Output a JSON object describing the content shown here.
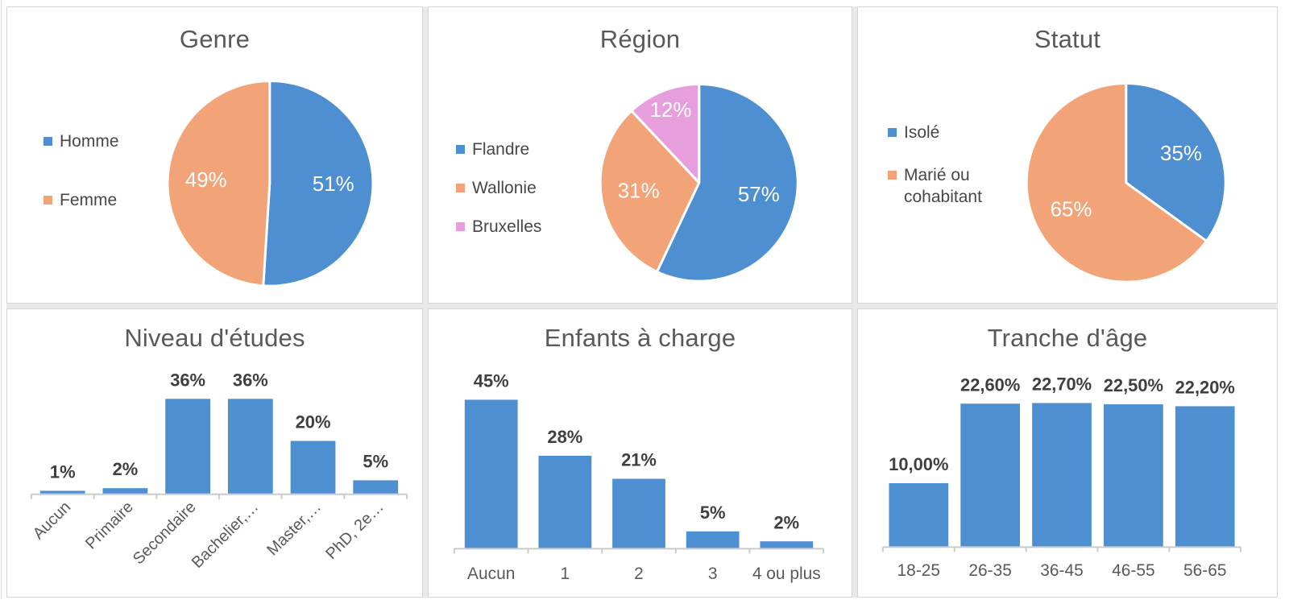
{
  "colors": {
    "series_blue": "#4e8fd2",
    "series_orange": "#f2a478",
    "series_pink": "#e79edc",
    "title_text": "#595959",
    "legend_text": "#474747",
    "value_label_text": "#3f3f3f",
    "category_label_text": "#595959",
    "axis_line": "#cbcbcb",
    "panel_border": "#d4d4d4",
    "grid_gap": "#e9e9e9"
  },
  "chart_data": [
    {
      "type": "pie",
      "title": "Genre",
      "legend_position": "left",
      "slices": [
        {
          "label": "Homme",
          "value": 51,
          "display": "51%",
          "color": "#4e8fd2"
        },
        {
          "label": "Femme",
          "value": 49,
          "display": "49%",
          "color": "#f2a478"
        }
      ]
    },
    {
      "type": "pie",
      "title": "Région",
      "legend_position": "left",
      "slices": [
        {
          "label": "Flandre",
          "value": 57,
          "display": "57%",
          "color": "#4e8fd2"
        },
        {
          "label": "Wallonie",
          "value": 31,
          "display": "31%",
          "color": "#f2a478"
        },
        {
          "label": "Bruxelles",
          "value": 12,
          "display": "12%",
          "color": "#e79edc"
        }
      ]
    },
    {
      "type": "pie",
      "title": "Statut",
      "legend_position": "left",
      "slices": [
        {
          "label": "Isolé",
          "value": 35,
          "display": "35%",
          "color": "#4e8fd2"
        },
        {
          "label": "Marié ou cohabitant",
          "value": 65,
          "display": "65%",
          "color": "#f2a478"
        }
      ]
    },
    {
      "type": "bar",
      "title": "Niveau d'études",
      "categories": [
        "Aucun",
        "Primaire",
        "Secondaire",
        "Bachelier,…",
        "Master,…",
        "PhD, 2e…"
      ],
      "values": [
        1,
        2,
        36,
        36,
        20,
        5
      ],
      "value_labels": [
        "1%",
        "2%",
        "36%",
        "36%",
        "20%",
        "5%"
      ],
      "bar_color": "#4e8fd2",
      "x_label_rotation": 45,
      "ylim": [
        0,
        40
      ],
      "grid": false,
      "legend": "none"
    },
    {
      "type": "bar",
      "title": "Enfants à charge",
      "categories": [
        "Aucun",
        "1",
        "2",
        "3",
        "4 ou plus"
      ],
      "values": [
        45,
        28,
        21,
        5,
        2
      ],
      "value_labels": [
        "45%",
        "28%",
        "21%",
        "5%",
        "2%"
      ],
      "bar_color": "#4e8fd2",
      "x_label_rotation": 0,
      "ylim": [
        0,
        50
      ],
      "grid": false,
      "legend": "none"
    },
    {
      "type": "bar",
      "title": "Tranche d'âge",
      "categories": [
        "18-25",
        "26-35",
        "36-45",
        "46-55",
        "56-65"
      ],
      "values": [
        10.0,
        22.6,
        22.7,
        22.5,
        22.2
      ],
      "value_labels": [
        "10,00%",
        "22,60%",
        "22,70%",
        "22,50%",
        "22,20%"
      ],
      "bar_color": "#4e8fd2",
      "x_label_rotation": 0,
      "ylim": [
        0,
        25
      ],
      "grid": false,
      "legend": "none"
    }
  ]
}
